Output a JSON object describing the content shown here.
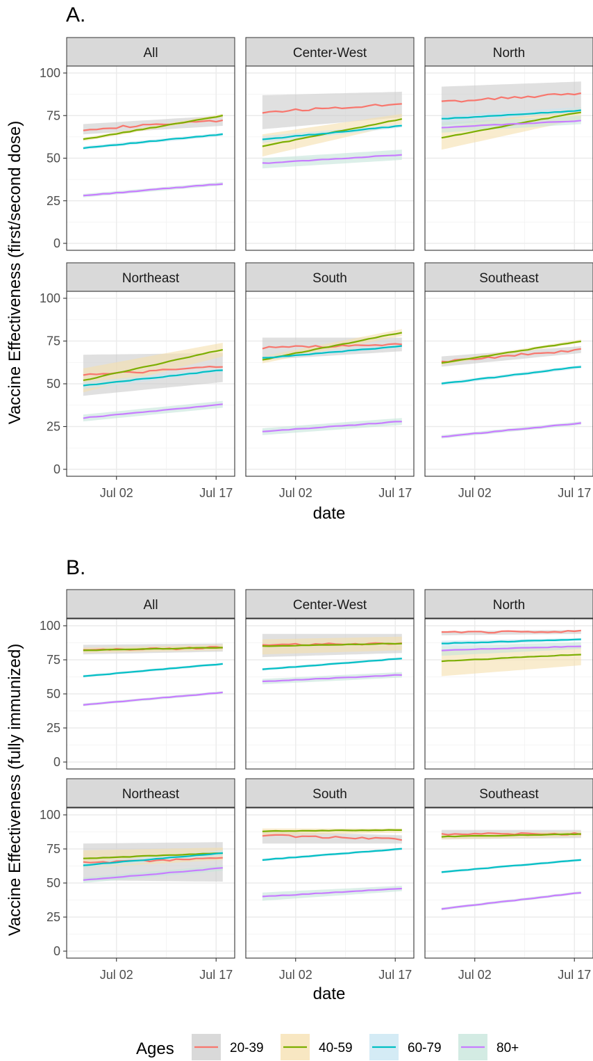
{
  "legend": {
    "title": "Ages",
    "items": [
      {
        "label": "20-39",
        "color": "#F8766D"
      },
      {
        "label": "40-59",
        "color": "#7CAE00"
      },
      {
        "label": "60-79",
        "color": "#00BFC4"
      },
      {
        "label": "80+",
        "color": "#C77CFF"
      }
    ]
  },
  "band_fills": {
    "20-39": "#cccccc",
    "40-59": "#f5dfae",
    "60-79": "#c6e4f2",
    "80+": "#c4e4da"
  },
  "chart_data": [
    {
      "id": "A",
      "type": "line",
      "label": "A.",
      "ylabel": "Vaccine Effectiveness (first/second dose)",
      "xlabel": "date",
      "ylim": [
        0,
        100
      ],
      "yticks": [
        0,
        25,
        50,
        75,
        100
      ],
      "xlim": [
        -5.5,
        19.8
      ],
      "xticks": [
        {
          "value": 2,
          "label": "Jul 02"
        },
        {
          "value": 17,
          "label": "Jul 17"
        }
      ],
      "grid": true,
      "x_start": -3,
      "x_end": 18,
      "facets": [
        {
          "title": "All",
          "series": [
            {
              "name": "20-39",
              "start": 67,
              "end": 72,
              "lo": [
                64,
                69
              ],
              "hi": [
                70,
                75
              ]
            },
            {
              "name": "40-59",
              "start": 61,
              "end": 75,
              "lo": [
                60,
                74
              ],
              "hi": [
                62,
                76
              ]
            },
            {
              "name": "60-79",
              "start": 56,
              "end": 64,
              "lo": [
                55,
                63
              ],
              "hi": [
                57,
                65
              ]
            },
            {
              "name": "80+",
              "start": 28,
              "end": 35,
              "lo": [
                27,
                34
              ],
              "hi": [
                29,
                36
              ]
            }
          ]
        },
        {
          "title": "Center-West",
          "series": [
            {
              "name": "20-39",
              "start": 77,
              "end": 82,
              "lo": [
                67,
                74
              ],
              "hi": [
                87,
                89
              ]
            },
            {
              "name": "40-59",
              "start": 57,
              "end": 73,
              "lo": [
                51,
                70
              ],
              "hi": [
                64,
                76
              ]
            },
            {
              "name": "60-79",
              "start": 61,
              "end": 69,
              "lo": [
                59,
                68
              ],
              "hi": [
                63,
                70
              ]
            },
            {
              "name": "80+",
              "start": 47,
              "end": 52,
              "lo": [
                44,
                49
              ],
              "hi": [
                50,
                55
              ]
            }
          ]
        },
        {
          "title": "North",
          "series": [
            {
              "name": "20-39",
              "start": 83,
              "end": 88,
              "lo": [
                69,
                77
              ],
              "hi": [
                92,
                95
              ]
            },
            {
              "name": "40-59",
              "start": 62,
              "end": 77,
              "lo": [
                55,
                73
              ],
              "hi": [
                68,
                80
              ]
            },
            {
              "name": "60-79",
              "start": 73,
              "end": 78,
              "lo": [
                71,
                77
              ],
              "hi": [
                75,
                80
              ]
            },
            {
              "name": "80+",
              "start": 68,
              "end": 72,
              "lo": [
                65,
                70
              ],
              "hi": [
                71,
                75
              ]
            }
          ]
        },
        {
          "title": "Northeast",
          "series": [
            {
              "name": "20-39",
              "start": 55,
              "end": 60,
              "lo": [
                43,
                51
              ],
              "hi": [
                67,
                68
              ]
            },
            {
              "name": "40-59",
              "start": 52,
              "end": 70,
              "lo": [
                45,
                66
              ],
              "hi": [
                59,
                74
              ]
            },
            {
              "name": "60-79",
              "start": 49,
              "end": 58,
              "lo": [
                47,
                57
              ],
              "hi": [
                51,
                59
              ]
            },
            {
              "name": "80+",
              "start": 30,
              "end": 38,
              "lo": [
                28,
                36
              ],
              "hi": [
                32,
                40
              ]
            }
          ]
        },
        {
          "title": "South",
          "series": [
            {
              "name": "20-39",
              "start": 71,
              "end": 73,
              "lo": [
                64,
                69
              ],
              "hi": [
                77,
                77
              ]
            },
            {
              "name": "40-59",
              "start": 64,
              "end": 80,
              "lo": [
                62,
                78
              ],
              "hi": [
                66,
                82
              ]
            },
            {
              "name": "60-79",
              "start": 65,
              "end": 72,
              "lo": [
                64,
                71
              ],
              "hi": [
                66,
                73
              ]
            },
            {
              "name": "80+",
              "start": 22,
              "end": 28,
              "lo": [
                20,
                26
              ],
              "hi": [
                24,
                30
              ]
            }
          ]
        },
        {
          "title": "Southeast",
          "series": [
            {
              "name": "20-39",
              "start": 63,
              "end": 70,
              "lo": [
                60,
                68
              ],
              "hi": [
                66,
                72
              ]
            },
            {
              "name": "40-59",
              "start": 62,
              "end": 75,
              "lo": [
                61,
                74
              ],
              "hi": [
                63,
                76
              ]
            },
            {
              "name": "60-79",
              "start": 50,
              "end": 60,
              "lo": [
                49,
                59
              ],
              "hi": [
                51,
                61
              ]
            },
            {
              "name": "80+",
              "start": 19,
              "end": 27,
              "lo": [
                18,
                26
              ],
              "hi": [
                20,
                28
              ]
            }
          ]
        }
      ]
    },
    {
      "id": "B",
      "type": "line",
      "label": "B.",
      "ylabel": "Vaccine Effectiveness (fully immunized)",
      "xlabel": "date",
      "ylim": [
        0,
        100
      ],
      "yticks": [
        0,
        25,
        50,
        75,
        100
      ],
      "xlim": [
        -5.5,
        19.8
      ],
      "xticks": [
        {
          "value": 2,
          "label": "Jul 02"
        },
        {
          "value": 17,
          "label": "Jul 17"
        }
      ],
      "grid": true,
      "x_start": -3,
      "x_end": 18,
      "facets": [
        {
          "title": "All",
          "series": [
            {
              "name": "20-39",
              "start": 82,
              "end": 84,
              "lo": [
                79,
                81
              ],
              "hi": [
                86,
                87
              ]
            },
            {
              "name": "40-59",
              "start": 82,
              "end": 84,
              "lo": [
                80,
                82
              ],
              "hi": [
                84,
                86
              ]
            },
            {
              "name": "60-79",
              "start": 63,
              "end": 72,
              "lo": [
                62,
                71
              ],
              "hi": [
                64,
                73
              ]
            },
            {
              "name": "80+",
              "start": 42,
              "end": 51,
              "lo": [
                41,
                50
              ],
              "hi": [
                43,
                52
              ]
            }
          ]
        },
        {
          "title": "Center-West",
          "series": [
            {
              "name": "20-39",
              "start": 86,
              "end": 87,
              "lo": [
                77,
                80
              ],
              "hi": [
                94,
                94
              ]
            },
            {
              "name": "40-59",
              "start": 85,
              "end": 87,
              "lo": [
                79,
                82
              ],
              "hi": [
                90,
                92
              ]
            },
            {
              "name": "60-79",
              "start": 68,
              "end": 76,
              "lo": [
                67,
                75
              ],
              "hi": [
                69,
                77
              ]
            },
            {
              "name": "80+",
              "start": 59,
              "end": 64,
              "lo": [
                57,
                62
              ],
              "hi": [
                61,
                66
              ]
            }
          ]
        },
        {
          "title": "North",
          "series": [
            {
              "name": "20-39",
              "start": 95,
              "end": 96,
              "lo": [
                93,
                94
              ],
              "hi": [
                96,
                97
              ]
            },
            {
              "name": "40-59",
              "start": 74,
              "end": 79,
              "lo": [
                63,
                71
              ],
              "hi": [
                82,
                85
              ]
            },
            {
              "name": "60-79",
              "start": 87,
              "end": 90,
              "lo": [
                85,
                89
              ],
              "hi": [
                89,
                91
              ]
            },
            {
              "name": "80+",
              "start": 82,
              "end": 85,
              "lo": [
                78,
                83
              ],
              "hi": [
                85,
                88
              ]
            }
          ]
        },
        {
          "title": "Northeast",
          "series": [
            {
              "name": "20-39",
              "start": 65,
              "end": 68,
              "lo": [
                52,
                51
              ],
              "hi": [
                79,
                80
              ]
            },
            {
              "name": "40-59",
              "start": 68,
              "end": 72,
              "lo": [
                61,
                67
              ],
              "hi": [
                74,
                76
              ]
            },
            {
              "name": "60-79",
              "start": 63,
              "end": 72,
              "lo": [
                61,
                70
              ],
              "hi": [
                65,
                74
              ]
            },
            {
              "name": "80+",
              "start": 52,
              "end": 61,
              "lo": [
                50,
                59
              ],
              "hi": [
                54,
                63
              ]
            }
          ]
        },
        {
          "title": "South",
          "series": [
            {
              "name": "20-39",
              "start": 85,
              "end": 82,
              "lo": [
                79,
                79
              ],
              "hi": [
                88,
                85
              ]
            },
            {
              "name": "40-59",
              "start": 88,
              "end": 89,
              "lo": [
                85,
                87
              ],
              "hi": [
                90,
                90
              ]
            },
            {
              "name": "60-79",
              "start": 67,
              "end": 75,
              "lo": [
                66,
                74
              ],
              "hi": [
                68,
                76
              ]
            },
            {
              "name": "80+",
              "start": 40,
              "end": 46,
              "lo": [
                37,
                44
              ],
              "hi": [
                43,
                48
              ]
            }
          ]
        },
        {
          "title": "Southeast",
          "series": [
            {
              "name": "20-39",
              "start": 86,
              "end": 86,
              "lo": [
                82,
                83
              ],
              "hi": [
                89,
                89
              ]
            },
            {
              "name": "40-59",
              "start": 84,
              "end": 86,
              "lo": [
                82,
                84
              ],
              "hi": [
                86,
                88
              ]
            },
            {
              "name": "60-79",
              "start": 58,
              "end": 67,
              "lo": [
                57,
                66
              ],
              "hi": [
                59,
                68
              ]
            },
            {
              "name": "80+",
              "start": 31,
              "end": 43,
              "lo": [
                30,
                42
              ],
              "hi": [
                32,
                44
              ]
            }
          ]
        }
      ]
    }
  ]
}
